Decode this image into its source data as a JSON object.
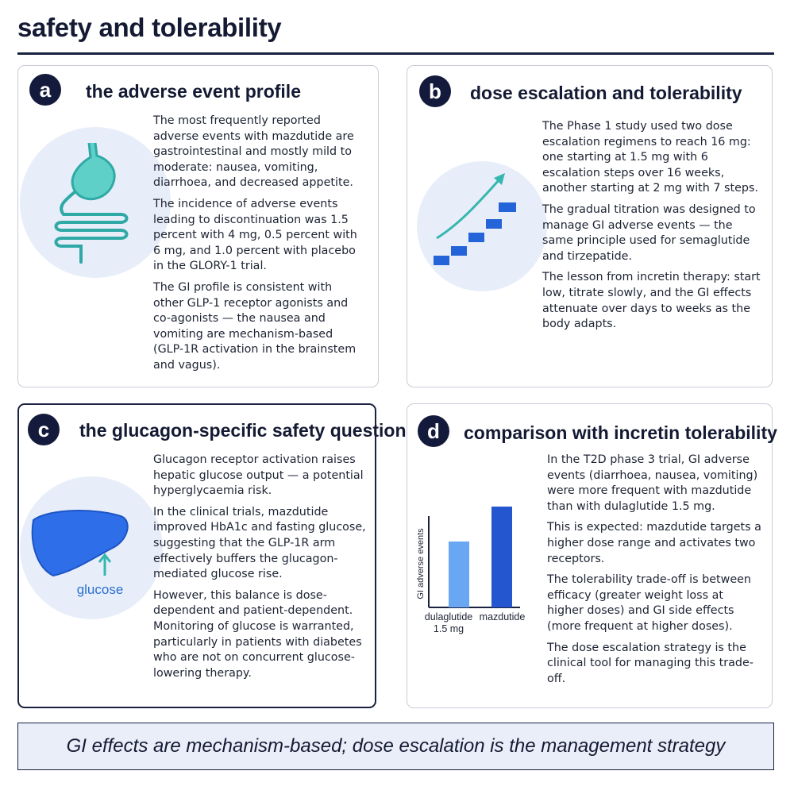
{
  "header": {
    "title": "safety and tolerability"
  },
  "panels": [
    {
      "letter": "a",
      "heading": "the adverse event profile",
      "paragraphs": [
        "The most frequently reported adverse events with mazdutide are gastrointestinal and mostly mild to moderate: nausea, vomiting, diarrhoea, and decreased appetite.",
        "The incidence of adverse events leading to discontinuation was 1.5 percent with 4 mg, 0.5 percent with 6 mg, and 1.0 percent with placebo in the GLORY-1 trial.",
        "The GI profile is consistent with other GLP-1 receptor agonists and co-agonists — the nausea and vomiting are mechanism-based (GLP-1R activation in the brainstem and vagus)."
      ]
    },
    {
      "letter": "b",
      "heading": "dose escalation and tolerability",
      "paragraphs": [
        "The Phase 1 study used two dose escalation regimens to reach 16 mg: one starting at 1.5 mg with 6 escalation steps over 16 weeks, another starting at 2 mg with 7 steps.",
        "The gradual titration was designed to manage GI adverse events — the same principle used for semaglutide and tirzepatide.",
        "The lesson from incretin therapy: start low, titrate slowly, and the GI effects attenuate over days to weeks as the body adapts."
      ]
    },
    {
      "letter": "c",
      "heading": "the glucagon-specific safety question",
      "illustration_label": "glucose",
      "paragraphs": [
        "Glucagon receptor activation raises hepatic glucose output — a potential hyperglycaemia risk.",
        "In the clinical trials, mazdutide improved HbA1c and fasting glucose, suggesting that the GLP-1R arm effectively buffers the glucagon-mediated glucose rise.",
        "However, this balance is dose-dependent and patient-dependent. Monitoring of glucose is warranted, particularly in patients with diabetes who are not on concurrent glucose-lowering therapy."
      ]
    },
    {
      "letter": "d",
      "heading": "comparison with incretin tolerability",
      "illustration_axis_label": "GI adverse events",
      "illustration_bars": [
        "dulaglutide 1.5 mg",
        "mazdutide"
      ],
      "paragraphs": [
        "In the T2D phase 3 trial, GI adverse events (diarrhoea, nausea, vomiting) were more frequent with mazdutide than with dulaglutide 1.5 mg.",
        "This is expected: mazdutide targets a higher dose range and activates two receptors.",
        "The tolerability trade-off is between efficacy (greater weight loss at higher doses) and GI side effects (more frequent at higher doses).",
        "The dose escalation strategy is the clinical tool for managing this trade-off."
      ]
    }
  ],
  "footer": "GI effects are mechanism-based; dose escalation is the management strategy"
}
